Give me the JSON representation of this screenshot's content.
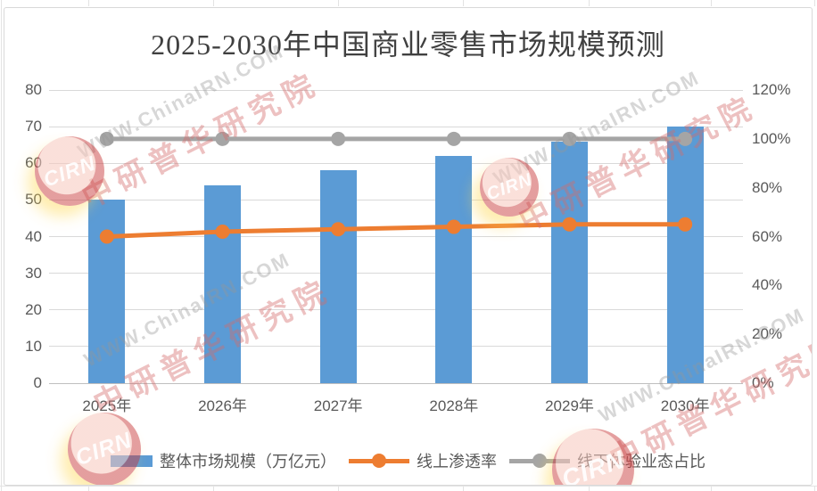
{
  "title": "2025-2030年中国商业零售市场规模预测",
  "chart_data": {
    "type": "combo-bar-line",
    "title": "2025-2030年中国商业零售市场规模预测",
    "categories": [
      "2025年",
      "2026年",
      "2027年",
      "2028年",
      "2029年",
      "2030年"
    ],
    "series": [
      {
        "name": "整体市场规模（万亿元）",
        "type": "bar",
        "axis": "left",
        "color": "#5B9BD5",
        "values": [
          50,
          54,
          58,
          62,
          66,
          70
        ]
      },
      {
        "name": "线上渗透率",
        "type": "line",
        "axis": "right",
        "color": "#ED7D31",
        "values": [
          60,
          62,
          63,
          64,
          65,
          65
        ]
      },
      {
        "name": "线下体验业态占比",
        "type": "line",
        "axis": "right",
        "color": "#A5A5A5",
        "values": [
          100,
          100,
          100,
          100,
          100,
          100
        ]
      }
    ],
    "left_axis": {
      "min": 0,
      "max": 80,
      "step": 10,
      "ticks": [
        "0",
        "10",
        "20",
        "30",
        "40",
        "50",
        "60",
        "70",
        "80"
      ]
    },
    "right_axis": {
      "min": 0,
      "max": 120,
      "step": 20,
      "ticks": [
        "0%",
        "20%",
        "40%",
        "60%",
        "80%",
        "100%",
        "120%"
      ]
    },
    "grid": true,
    "legend_position": "bottom",
    "gridline_color": "#D9D9D9",
    "text_color": "#595959",
    "title_color": "#404040"
  },
  "watermark": {
    "url_text": "WWW.ChinaIRN.COM",
    "brand_text": "中研普华研究院",
    "logo_text": "CIRN"
  }
}
